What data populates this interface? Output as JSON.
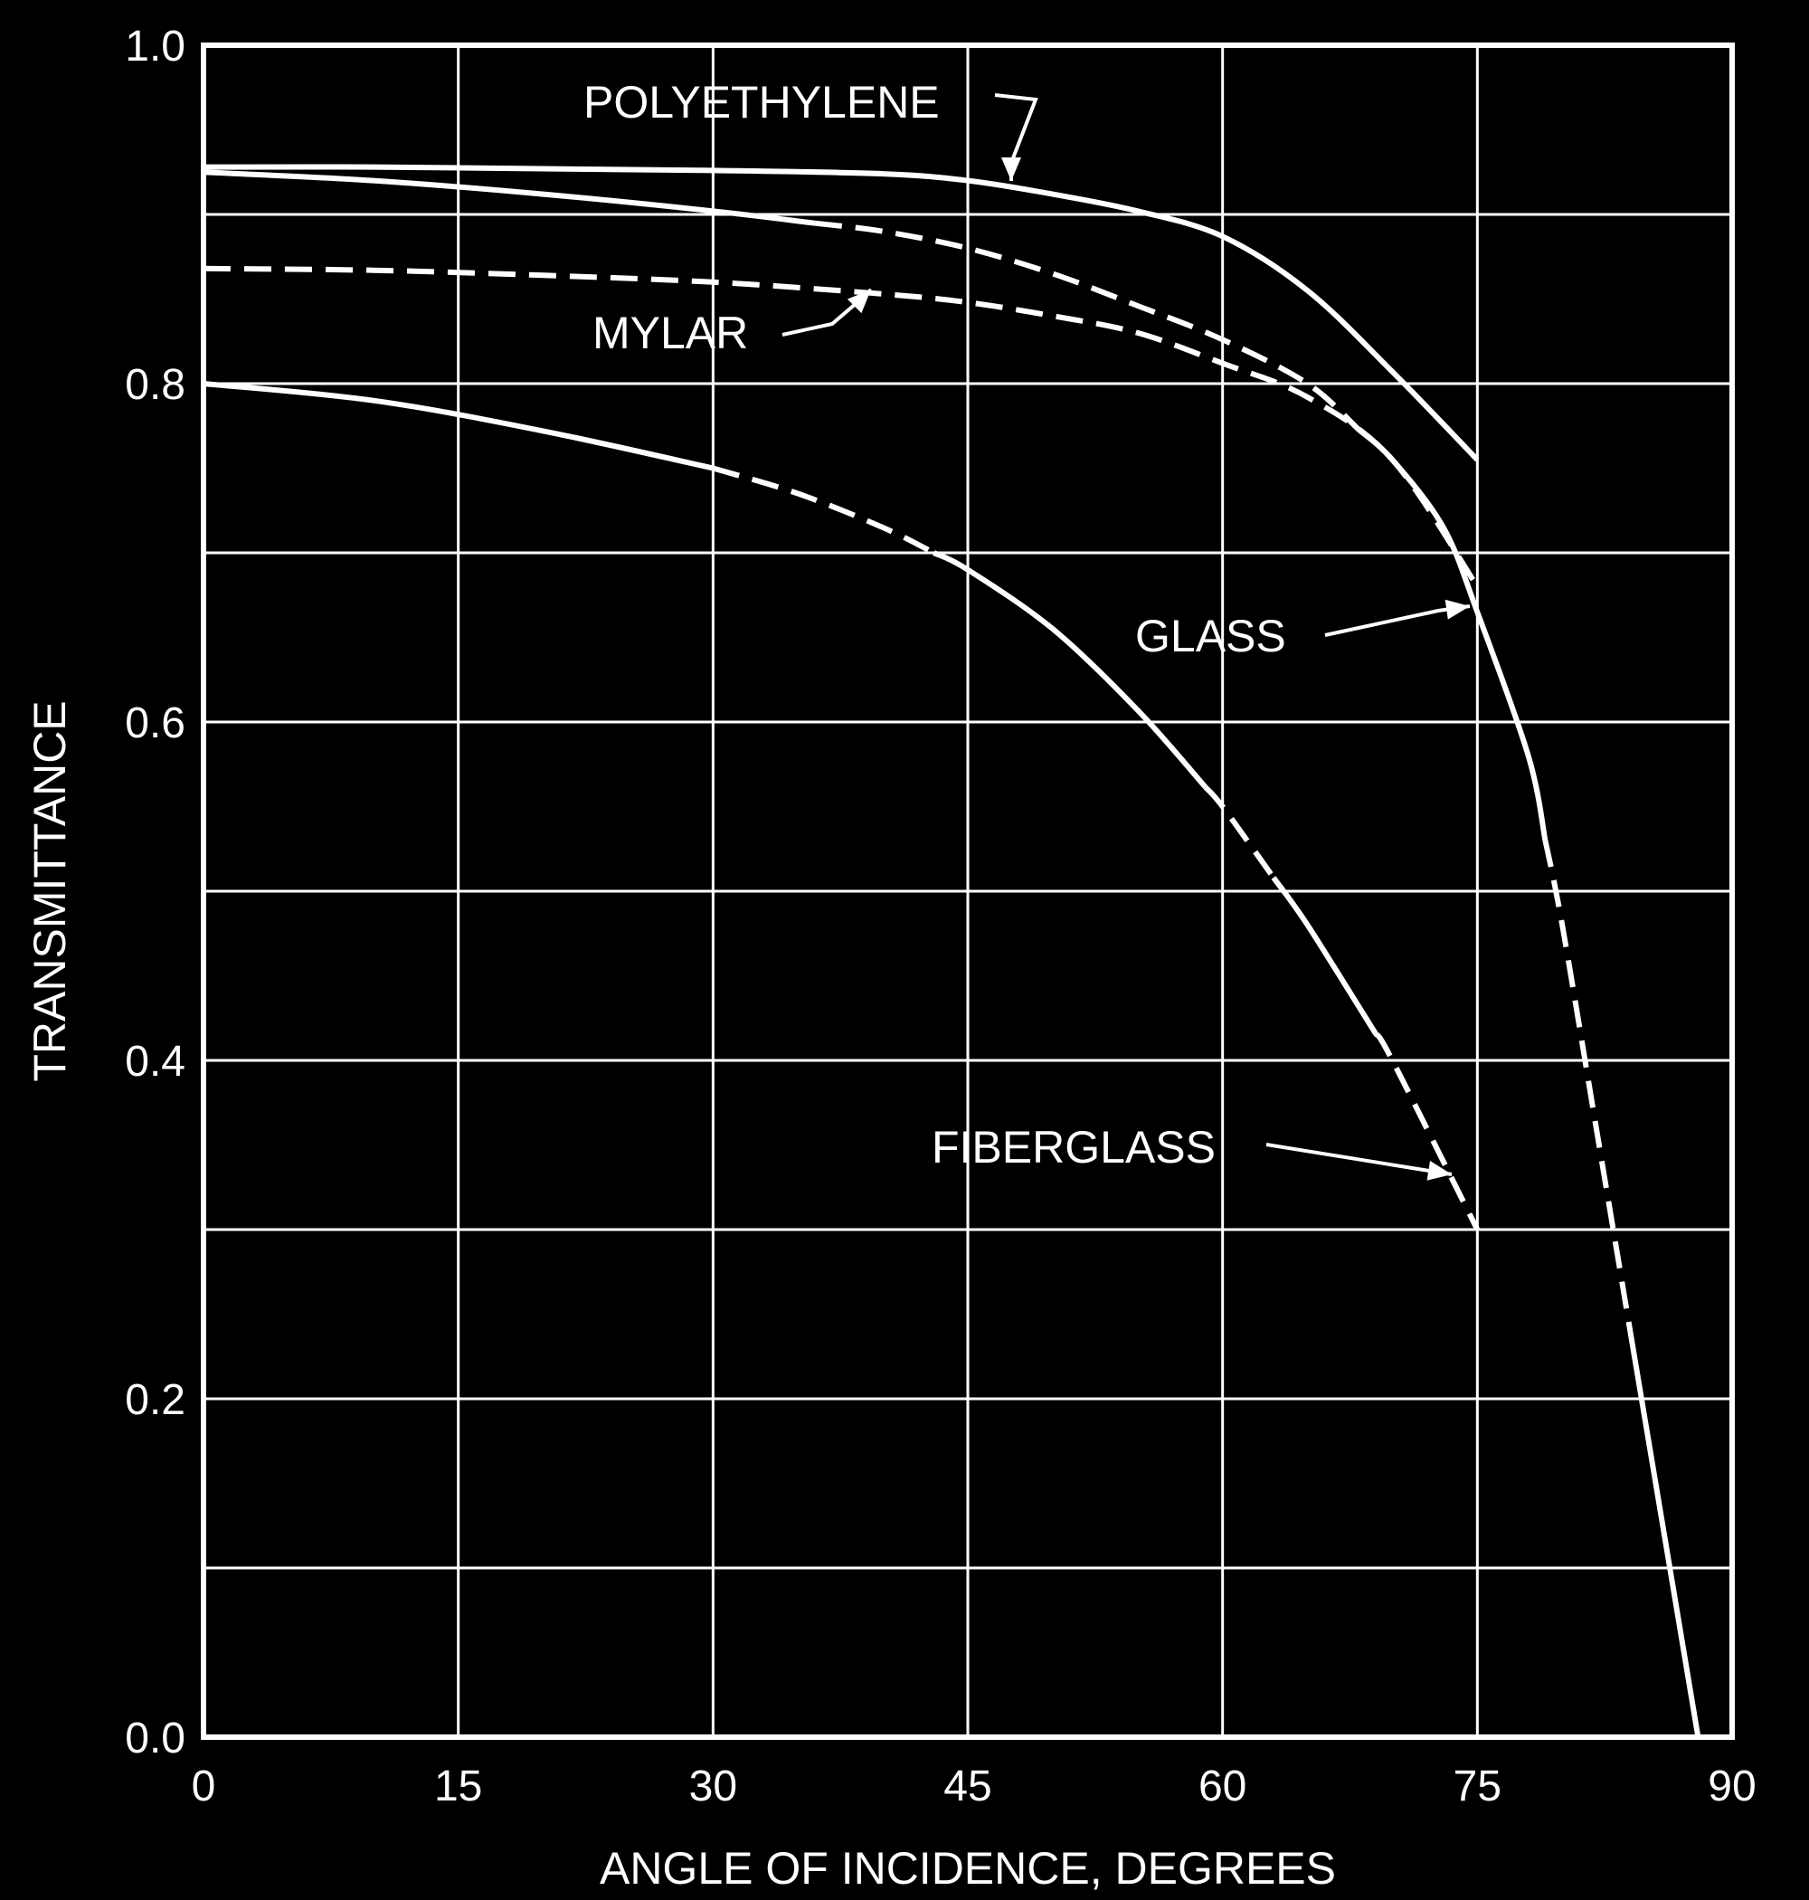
{
  "chart_data": {
    "type": "line",
    "title": "",
    "xlabel": "ANGLE OF INCIDENCE, DEGREES",
    "ylabel": "TRANSMITTANCE",
    "xlim": [
      0,
      90
    ],
    "ylim": [
      0,
      1.0
    ],
    "x_ticks": [
      "0",
      "15",
      "30",
      "45",
      "60",
      "75",
      "90"
    ],
    "y_ticks": [
      "0.0",
      "0.2",
      "0.4",
      "0.6",
      "0.8",
      "1.0"
    ],
    "x_grid_values": [
      0,
      15,
      30,
      45,
      60,
      75,
      90
    ],
    "y_grid_values": [
      0,
      0.1,
      0.2,
      0.3,
      0.4,
      0.5,
      0.6,
      0.7,
      0.8,
      0.9,
      1.0
    ],
    "grid": true,
    "background_color": "#000000",
    "foreground_color": "#ffffff",
    "series": [
      {
        "name": "POLYETHYLENE",
        "x": [
          0,
          10,
          20,
          30,
          40,
          45,
          50,
          55,
          60,
          65,
          70,
          75
        ],
        "y": [
          0.928,
          0.928,
          0.927,
          0.926,
          0.924,
          0.92,
          0.912,
          0.902,
          0.887,
          0.855,
          0.807,
          0.755
        ]
      },
      {
        "name": "GLASS",
        "x": [
          0,
          10,
          20,
          30,
          40,
          45,
          50,
          55,
          60,
          65,
          70,
          73,
          75,
          78,
          80,
          82,
          84,
          86,
          88
        ],
        "y": [
          0.925,
          0.92,
          0.912,
          0.902,
          0.89,
          0.88,
          0.865,
          0.846,
          0.826,
          0.8,
          0.755,
          0.715,
          0.665,
          0.58,
          0.48,
          0.36,
          0.24,
          0.12,
          0.0
        ]
      },
      {
        "name": "MYLAR",
        "x": [
          0,
          10,
          20,
          30,
          40,
          45,
          50,
          55,
          60,
          65,
          70,
          75
        ],
        "y": [
          0.868,
          0.867,
          0.864,
          0.86,
          0.853,
          0.848,
          0.84,
          0.83,
          0.812,
          0.792,
          0.755,
          0.68
        ]
      },
      {
        "name": "FIBERGLASS",
        "x": [
          0,
          10,
          20,
          30,
          35,
          40,
          45,
          50,
          55,
          60,
          65,
          70,
          75
        ],
        "y": [
          0.8,
          0.79,
          0.772,
          0.75,
          0.735,
          0.715,
          0.69,
          0.655,
          0.607,
          0.55,
          0.48,
          0.4,
          0.3
        ]
      }
    ],
    "annotations": [
      {
        "text": "POLYETHYLENE",
        "series": "POLYETHYLENE"
      },
      {
        "text": "MYLAR",
        "series": "MYLAR"
      },
      {
        "text": "GLASS",
        "series": "GLASS"
      },
      {
        "text": "FIBERGLASS",
        "series": "FIBERGLASS"
      }
    ]
  }
}
